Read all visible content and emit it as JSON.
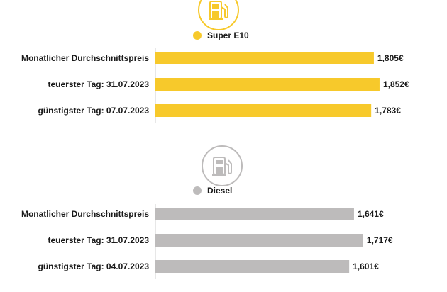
{
  "chart_data": [
    {
      "type": "bar",
      "orientation": "horizontal",
      "icon": "fuel-pump-icon",
      "legend": "Super E10",
      "color": "#F7C92B",
      "icon_bg": "#ffffff",
      "icon_stroke": "#F7C92B",
      "categories": [
        "Monatlicher Durchschnittspreis",
        "teuerster Tag: 31.07.2023",
        "günstigster Tag: 07.07.2023"
      ],
      "values": [
        1.805,
        1.852,
        1.783
      ],
      "value_labels": [
        "1,805€",
        "1,852€",
        "1,783€"
      ]
    },
    {
      "type": "bar",
      "orientation": "horizontal",
      "icon": "fuel-pump-icon",
      "legend": "Diesel",
      "color": "#BDBBBB",
      "icon_bg": "#ffffff",
      "icon_stroke": "#BDBBBB",
      "categories": [
        "Monatlicher Durchschnittspreis",
        "teuerster Tag: 31.07.2023",
        "günstigster Tag: 04.07.2023"
      ],
      "values": [
        1.641,
        1.717,
        1.601
      ],
      "value_labels": [
        "1,641€",
        "1,717€",
        "1,601€"
      ]
    }
  ]
}
